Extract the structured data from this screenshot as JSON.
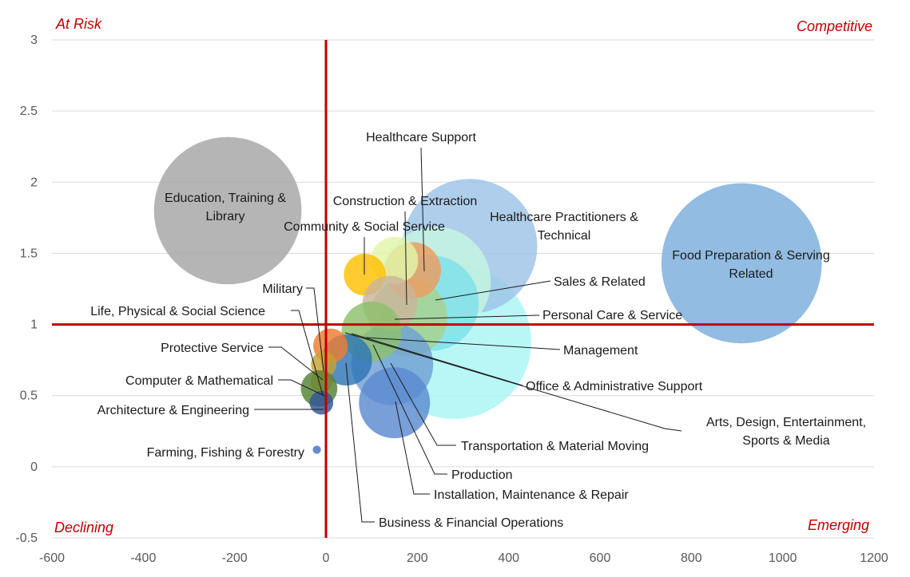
{
  "chart_data": {
    "type": "scatter",
    "subtype": "bubble",
    "title": "",
    "xlabel": "",
    "ylabel": "",
    "xlim": [
      -600,
      1200
    ],
    "ylim": [
      -0.5,
      3
    ],
    "x_ticks": [
      "-600",
      "-400",
      "-200",
      "0",
      "200",
      "400",
      "600",
      "800",
      "1000",
      "1200"
    ],
    "y_ticks": [
      "-0.5",
      "0",
      "0.5",
      "1",
      "1.5",
      "2",
      "2.5",
      "3"
    ],
    "grid": "horizontal",
    "reference_lines": {
      "x": 0,
      "y": 1,
      "color": "#c00000"
    },
    "quadrants": [
      {
        "id": "at-risk",
        "label": "At Risk"
      },
      {
        "id": "competitive",
        "label": "Competitive"
      },
      {
        "id": "declining",
        "label": "Declining"
      },
      {
        "id": "emerging",
        "label": "Emerging"
      }
    ],
    "bubbles": [
      {
        "id": "arts",
        "name": "Arts, Design, Entertainment, Sports & Media",
        "x": 280,
        "y": 0.88,
        "size": 170,
        "color": "#aaf5f5"
      },
      {
        "id": "practitioners",
        "name": "Healthcare Practitioners & Technical",
        "x": 315,
        "y": 1.55,
        "size": 148,
        "color": "#9dc3e6"
      },
      {
        "id": "food",
        "name": "Food Preparation & Serving Related",
        "x": 910,
        "y": 1.43,
        "size": 176,
        "color": "#7aaddb"
      },
      {
        "id": "education",
        "name": "Education, Training & Library",
        "x": -215,
        "y": 1.8,
        "size": 162,
        "color": "#a5a5a5"
      },
      {
        "id": "sales",
        "name": "Sales & Related",
        "x": 240,
        "y": 1.3,
        "size": 121,
        "color": "#c6f7e0"
      },
      {
        "id": "personal",
        "name": "Personal Care & Service",
        "x": 230,
        "y": 1.15,
        "size": 105,
        "color": "#7ee0ea"
      },
      {
        "id": "management",
        "name": "Management",
        "x": 180,
        "y": 1.05,
        "size": 86,
        "color": "#a9d18e"
      },
      {
        "id": "office",
        "name": "Office & Administrative Support",
        "x": 145,
        "y": 0.72,
        "size": 90,
        "color": "#6fa0d4"
      },
      {
        "id": "transport",
        "name": "Transportation & Material Moving",
        "x": 150,
        "y": 0.45,
        "size": 78,
        "color": "#5b8ad0"
      },
      {
        "id": "construction",
        "name": "Construction & Extraction",
        "x": 190,
        "y": 1.38,
        "size": 62,
        "color": "#ed9c5e"
      },
      {
        "id": "support",
        "name": "Healthcare Support",
        "x": 150,
        "y": 1.45,
        "size": 52,
        "color": "#e2f5a8"
      },
      {
        "id": "community",
        "name": "Community & Social Service",
        "x": 85,
        "y": 1.35,
        "size": 46,
        "color": "#ffc000"
      },
      {
        "id": "installation",
        "name": "Installation, Maintenance & Repair",
        "x": 140,
        "y": 1.15,
        "size": 60,
        "color": "#c9b49b"
      },
      {
        "id": "production",
        "name": "Production",
        "x": 100,
        "y": 0.95,
        "size": 66,
        "color": "#8cbf6d"
      },
      {
        "id": "business",
        "name": "Business & Financial Operations",
        "x": 45,
        "y": 0.75,
        "size": 56,
        "color": "#2e75b6"
      },
      {
        "id": "military",
        "name": "Military",
        "x": 10,
        "y": 0.85,
        "size": 38,
        "color": "#ed7d31"
      },
      {
        "id": "life",
        "name": "Life, Physical & Social Science",
        "x": -5,
        "y": 0.72,
        "size": 28,
        "color": "#c5a233"
      },
      {
        "id": "protective",
        "name": "Protective Service",
        "x": -10,
        "y": 0.6,
        "size": 24,
        "color": "#ff9933"
      },
      {
        "id": "computer",
        "name": "Computer & Mathematical",
        "x": -15,
        "y": 0.55,
        "size": 40,
        "color": "#548235"
      },
      {
        "id": "architecture",
        "name": "Architecture & Engineering",
        "x": -10,
        "y": 0.45,
        "size": 26,
        "color": "#2f5597"
      },
      {
        "id": "farming",
        "name": "Farming, Fishing & Forestry",
        "x": -20,
        "y": 0.12,
        "size": 9,
        "color": "#4472c4"
      }
    ]
  }
}
